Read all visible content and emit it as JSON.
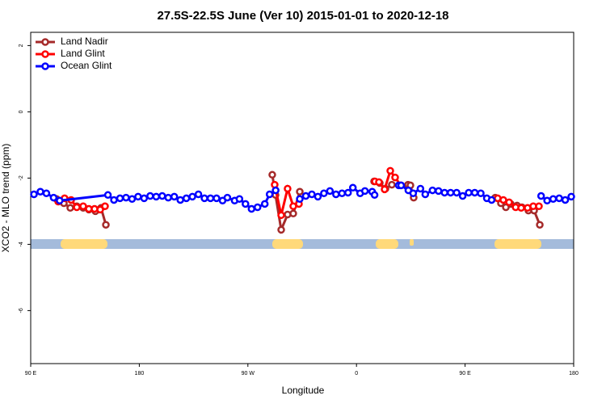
{
  "chart_data": {
    "type": "line",
    "title": "27.5S-22.5S June (Ver 10)   2015-01-01 to 2020-12-18",
    "xlabel": "Longitude",
    "ylabel": "XCO2 - MLO trend (ppm)",
    "xlim": [
      90,
      540
    ],
    "ylim": [
      -7.6,
      2.4
    ],
    "xticks": [
      {
        "value": 90,
        "label": "90 E"
      },
      180,
      {
        "value": 270,
        "label": "90 W"
      },
      {
        "value": 360,
        "label": "0"
      },
      {
        "value": 450,
        "label": "90 E"
      },
      {
        "value": 540,
        "label": "180"
      }
    ],
    "yticks": [
      -6,
      -4,
      -2,
      0,
      2
    ],
    "legend": "top-left",
    "series": [
      {
        "name": "Land Nadir",
        "color": "#a52a2a",
        "x": [
          111.4,
          117.5,
          122.8,
          128.2,
          133.5,
          138.2,
          143.6,
          148.3,
          152.3,
          null,
          290.2,
          292.9,
          297.6,
          302.9,
          307.6,
          313,
          null,
          374.6,
          379.3,
          384,
          389.3,
          402.7,
          404.7,
          407.4,
          null,
          475,
          479.7,
          483.8,
          487.8,
          493.1,
          497.1,
          502.5,
          507.2,
          511.9
        ],
        "values": [
          -2.63,
          -2.76,
          -2.9,
          -2.85,
          -2.9,
          -2.95,
          -3.0,
          -2.9,
          -3.41,
          null,
          -1.9,
          -2.51,
          -3.56,
          -3.1,
          -3.07,
          -2.41,
          null,
          -2.1,
          -2.15,
          -2.32,
          -2.2,
          -2.2,
          -2.22,
          -2.59,
          null,
          -2.59,
          -2.76,
          -2.88,
          -2.78,
          -2.83,
          -2.88,
          -2.98,
          -2.98,
          -3.41
        ]
      },
      {
        "name": "Land Glint",
        "color": "#ff0000",
        "x": [
          112.8,
          118.1,
          123.5,
          128.2,
          133.5,
          138.2,
          142.9,
          147.6,
          151.6,
          null,
          292.2,
          297.6,
          302.9,
          307.6,
          312.3,
          null,
          375.3,
          378.6,
          383.3,
          388,
          392,
          396.7,
          null,
          477,
          481.7,
          486.5,
          491.9,
          496.5,
          501.8,
          506.5,
          511.2
        ],
        "values": [
          -2.71,
          -2.61,
          -2.66,
          -2.88,
          -2.85,
          -2.93,
          -2.93,
          -2.95,
          -2.85,
          null,
          -2.2,
          -3.12,
          -2.32,
          -2.85,
          -2.78,
          null,
          -2.1,
          -2.12,
          -2.34,
          -1.78,
          -1.98,
          -2.22,
          null,
          -2.61,
          -2.66,
          -2.73,
          -2.88,
          -2.9,
          -2.9,
          -2.85,
          -2.85
        ]
      },
      {
        "name": "Ocean Glint",
        "color": "#0000ff",
        "x": [
          92.7,
          98,
          103,
          109,
          114,
          154,
          159,
          164,
          169,
          174,
          179,
          184,
          189,
          194,
          199,
          204,
          209,
          214,
          219,
          224,
          229,
          234,
          239,
          244,
          249,
          253,
          259,
          263,
          268,
          273,
          278,
          284,
          288,
          293,
          null,
          313,
          318,
          323,
          328,
          333,
          338,
          343,
          348,
          353,
          357,
          363,
          367,
          373,
          375,
          null,
          395,
          397,
          403,
          407,
          413,
          417,
          423,
          428,
          433,
          438,
          443,
          448,
          453,
          458,
          463,
          468,
          472,
          null,
          513,
          518,
          523,
          528,
          533,
          538
        ],
        "values": [
          -2.49,
          -2.41,
          -2.46,
          -2.59,
          -2.68,
          -2.51,
          -2.66,
          -2.61,
          -2.59,
          -2.63,
          -2.56,
          -2.61,
          -2.54,
          -2.56,
          -2.54,
          -2.59,
          -2.56,
          -2.66,
          -2.61,
          -2.56,
          -2.49,
          -2.61,
          -2.61,
          -2.61,
          -2.68,
          -2.59,
          -2.68,
          -2.63,
          -2.78,
          -2.93,
          -2.88,
          -2.78,
          -2.49,
          -2.37,
          null,
          -2.63,
          -2.54,
          -2.49,
          -2.56,
          -2.46,
          -2.39,
          -2.49,
          -2.46,
          -2.44,
          -2.29,
          -2.46,
          -2.39,
          -2.41,
          -2.51,
          null,
          -2.22,
          -2.22,
          -2.37,
          -2.46,
          -2.32,
          -2.49,
          -2.37,
          -2.39,
          -2.44,
          -2.44,
          -2.44,
          -2.54,
          -2.44,
          -2.44,
          -2.46,
          -2.61,
          -2.66,
          null,
          -2.54,
          -2.68,
          -2.63,
          -2.61,
          -2.66,
          -2.56
        ]
      }
    ]
  }
}
